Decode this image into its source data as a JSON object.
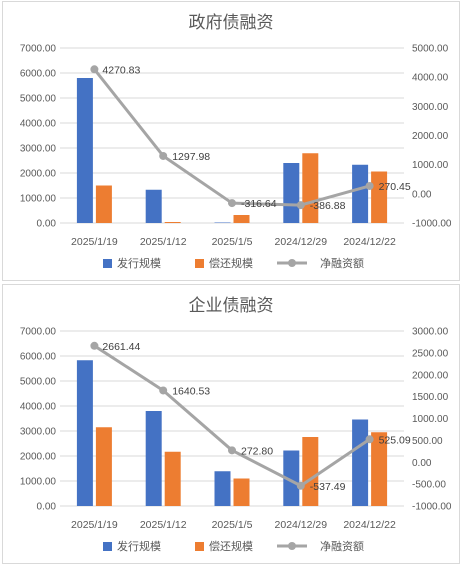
{
  "colors": {
    "issuance": "#4472C4",
    "repayment": "#ED7D31",
    "net": "#A5A5A5"
  },
  "chart_data": [
    {
      "type": "bar",
      "title": "政府债融资",
      "categories": [
        "2025/1/19",
        "2025/1/12",
        "2025/1/5",
        "2024/12/29",
        "2024/12/22"
      ],
      "series": [
        {
          "name": "发行规模",
          "type": "bar",
          "axis": "left",
          "values": [
            5800,
            1330,
            20,
            2400,
            2330
          ]
        },
        {
          "name": "偿还规模",
          "type": "bar",
          "axis": "left",
          "values": [
            1500,
            40,
            320,
            2790,
            2060
          ]
        },
        {
          "name": "净融资额",
          "type": "line",
          "axis": "right",
          "values": [
            4270.83,
            1297.98,
            -316.64,
            -386.88,
            270.45
          ],
          "labels": [
            "4270.83",
            "1297.98",
            "-316.64",
            "-386.88",
            "270.45"
          ]
        }
      ],
      "y_left": {
        "min": 0,
        "max": 7000,
        "step": 1000,
        "ticks": [
          "0.00",
          "1000.00",
          "2000.00",
          "3000.00",
          "4000.00",
          "5000.00",
          "6000.00",
          "7000.00"
        ]
      },
      "y_right": {
        "min": -1000,
        "max": 5000,
        "step": 1000,
        "ticks": [
          "-1000.00",
          "0.00",
          "1000.00",
          "2000.00",
          "3000.00",
          "4000.00",
          "5000.00"
        ]
      },
      "grid": true,
      "legend": "bottom"
    },
    {
      "type": "bar",
      "title": "企业债融资",
      "categories": [
        "2025/1/19",
        "2025/1/12",
        "2025/1/5",
        "2024/12/29",
        "2024/12/22"
      ],
      "series": [
        {
          "name": "发行规模",
          "type": "bar",
          "axis": "left",
          "values": [
            5830,
            3800,
            1390,
            2220,
            3460
          ]
        },
        {
          "name": "偿还规模",
          "type": "bar",
          "axis": "left",
          "values": [
            3150,
            2170,
            1100,
            2760,
            2950
          ]
        },
        {
          "name": "净融资额",
          "type": "line",
          "axis": "right",
          "values": [
            2661.44,
            1640.53,
            272.8,
            -537.49,
            525.09
          ],
          "labels": [
            "2661.44",
            "1640.53",
            "272.80",
            "-537.49",
            "525.09"
          ]
        }
      ],
      "y_left": {
        "min": 0,
        "max": 7000,
        "step": 1000,
        "ticks": [
          "0.00",
          "1000.00",
          "2000.00",
          "3000.00",
          "4000.00",
          "5000.00",
          "6000.00",
          "7000.00"
        ]
      },
      "y_right": {
        "min": -1000,
        "max": 3000,
        "step": 500,
        "ticks": [
          "-1000.00",
          "-500.00",
          "0.00",
          "500.00",
          "1000.00",
          "1500.00",
          "2000.00",
          "2500.00",
          "3000.00"
        ]
      },
      "grid": true,
      "legend": "bottom"
    }
  ]
}
